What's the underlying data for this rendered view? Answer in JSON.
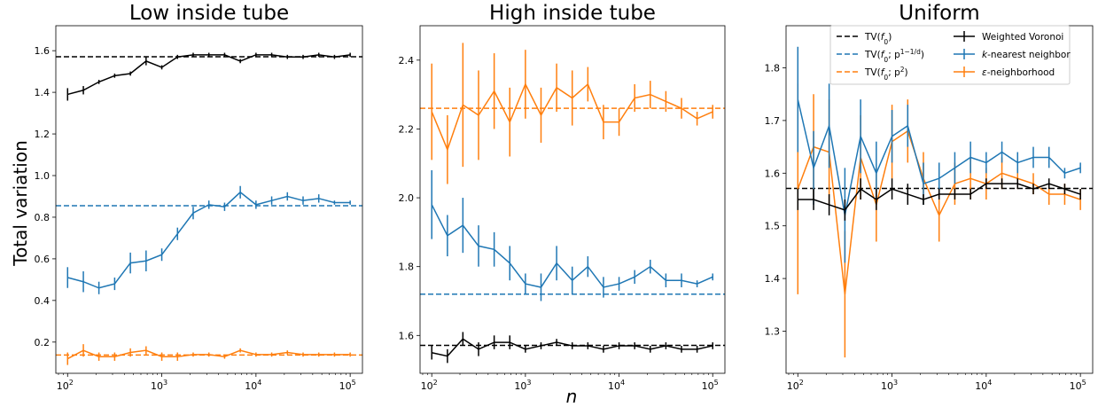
{
  "figure": {
    "ylabel": "Total variation",
    "xlabel": "n",
    "x_tick_labels": [
      "10",
      "10",
      "10",
      "10"
    ],
    "x_tick_exponents": [
      "2",
      "3",
      "4",
      "5"
    ]
  },
  "legend": {
    "entries": [
      {
        "key": "tv",
        "prefix": "TV(",
        "italic": "f",
        "sub": "0",
        "suffix": ")",
        "sup": "",
        "style": "ref-black"
      },
      {
        "key": "tv_p",
        "prefix": "TV(",
        "italic": "f",
        "sub": "0",
        "suffix": "; p",
        "sup": "1−1/d",
        "close": ")",
        "style": "ref-blue"
      },
      {
        "key": "tv_p2",
        "prefix": "TV(",
        "italic": "f",
        "sub": "0",
        "suffix": "; p",
        "sup": "2",
        "close": ")",
        "style": "ref-orange"
      },
      {
        "key": "wv",
        "label": "Weighted Voronoi",
        "style": "series-black"
      },
      {
        "key": "knn",
        "italic_prefix": "k",
        "label": "-nearest neighbor",
        "style": "series-blue"
      },
      {
        "key": "eps",
        "italic_prefix": "ε",
        "label": "-neighborhood",
        "style": "series-orange"
      }
    ]
  },
  "colors": {
    "black": "#000000",
    "blue": "#1f77b4",
    "orange": "#ff7f0e"
  },
  "chart_data": [
    {
      "type": "line",
      "title": "Low inside tube",
      "xscale": "log",
      "xlim": [
        75,
        135000
      ],
      "ylim": [
        0.05,
        1.72
      ],
      "yticks": [
        0.2,
        0.4,
        0.6,
        0.8,
        1.0,
        1.2,
        1.4,
        1.6
      ],
      "ytick_labels": [
        "0.2",
        "0.4",
        "0.6",
        "0.8",
        "1.0",
        "1.2",
        "1.4",
        "1.6"
      ],
      "x": [
        100,
        147,
        215,
        316,
        464,
        681,
        1000,
        1468,
        2154,
        3162,
        4642,
        6813,
        10000,
        14678,
        21544,
        31623,
        46416,
        68129,
        100000
      ],
      "reference_lines": [
        {
          "name": "TV(f0)",
          "color": "black",
          "y": 1.571
        },
        {
          "name": "TV(f0; p^(1-1/d))",
          "color": "blue",
          "y": 0.855
        },
        {
          "name": "TV(f0; p^2)",
          "color": "orange",
          "y": 0.138
        }
      ],
      "series": [
        {
          "name": "Weighted Voronoi",
          "color": "black",
          "values": [
            1.39,
            1.41,
            1.45,
            1.48,
            1.49,
            1.55,
            1.52,
            1.57,
            1.58,
            1.58,
            1.58,
            1.55,
            1.58,
            1.58,
            1.57,
            1.57,
            1.58,
            1.57,
            1.58
          ],
          "errors": [
            0.03,
            0.02,
            0.01,
            0.01,
            0.01,
            0.02,
            0.01,
            0.01,
            0.01,
            0.01,
            0.01,
            0.01,
            0.01,
            0.01,
            0.01,
            0.01,
            0.01,
            0.01,
            0.01
          ]
        },
        {
          "name": "k-nearest neighbor",
          "color": "blue",
          "values": [
            0.51,
            0.49,
            0.46,
            0.48,
            0.58,
            0.59,
            0.62,
            0.72,
            0.82,
            0.86,
            0.85,
            0.92,
            0.86,
            0.88,
            0.9,
            0.88,
            0.89,
            0.87,
            0.87
          ],
          "errors": [
            0.05,
            0.05,
            0.03,
            0.03,
            0.05,
            0.05,
            0.03,
            0.03,
            0.03,
            0.02,
            0.02,
            0.03,
            0.02,
            0.02,
            0.02,
            0.02,
            0.02,
            0.01,
            0.01
          ]
        },
        {
          "name": "ε-neighborhood",
          "color": "orange",
          "values": [
            0.12,
            0.16,
            0.13,
            0.13,
            0.15,
            0.16,
            0.13,
            0.13,
            0.14,
            0.14,
            0.13,
            0.16,
            0.14,
            0.14,
            0.15,
            0.14,
            0.14,
            0.14,
            0.14
          ],
          "errors": [
            0.03,
            0.03,
            0.02,
            0.02,
            0.02,
            0.02,
            0.02,
            0.02,
            0.01,
            0.01,
            0.01,
            0.01,
            0.01,
            0.01,
            0.01,
            0.01,
            0.01,
            0.01,
            0.01
          ]
        }
      ]
    },
    {
      "type": "line",
      "title": "High inside tube",
      "xscale": "log",
      "xlim": [
        75,
        135000
      ],
      "ylim": [
        1.49,
        2.5
      ],
      "yticks": [
        1.6,
        1.8,
        2.0,
        2.2,
        2.4
      ],
      "ytick_labels": [
        "1.6",
        "1.8",
        "2.0",
        "2.2",
        "2.4"
      ],
      "x": [
        100,
        147,
        215,
        316,
        464,
        681,
        1000,
        1468,
        2154,
        3162,
        4642,
        6813,
        10000,
        14678,
        21544,
        31623,
        46416,
        68129,
        100000
      ],
      "reference_lines": [
        {
          "name": "TV(f0)",
          "color": "black",
          "y": 1.571
        },
        {
          "name": "TV(f0; p^(1-1/d))",
          "color": "blue",
          "y": 1.72
        },
        {
          "name": "TV(f0; p^2)",
          "color": "orange",
          "y": 2.26
        }
      ],
      "series": [
        {
          "name": "Weighted Voronoi",
          "color": "black",
          "values": [
            1.55,
            1.54,
            1.59,
            1.56,
            1.58,
            1.58,
            1.56,
            1.57,
            1.58,
            1.57,
            1.57,
            1.56,
            1.57,
            1.57,
            1.56,
            1.57,
            1.56,
            1.56,
            1.57
          ],
          "errors": [
            0.02,
            0.02,
            0.02,
            0.02,
            0.02,
            0.02,
            0.01,
            0.01,
            0.01,
            0.01,
            0.01,
            0.01,
            0.01,
            0.01,
            0.01,
            0.01,
            0.01,
            0.01,
            0.01
          ]
        },
        {
          "name": "k-nearest neighbor",
          "color": "blue",
          "values": [
            1.98,
            1.89,
            1.92,
            1.86,
            1.85,
            1.81,
            1.75,
            1.74,
            1.81,
            1.76,
            1.8,
            1.74,
            1.75,
            1.77,
            1.8,
            1.76,
            1.76,
            1.75,
            1.77
          ],
          "errors": [
            0.1,
            0.06,
            0.08,
            0.06,
            0.05,
            0.05,
            0.03,
            0.04,
            0.05,
            0.04,
            0.03,
            0.03,
            0.02,
            0.02,
            0.02,
            0.02,
            0.02,
            0.01,
            0.01
          ]
        },
        {
          "name": "ε-neighborhood",
          "color": "orange",
          "values": [
            2.25,
            2.14,
            2.27,
            2.24,
            2.31,
            2.22,
            2.33,
            2.24,
            2.32,
            2.29,
            2.33,
            2.22,
            2.22,
            2.29,
            2.3,
            2.28,
            2.26,
            2.23,
            2.25
          ],
          "errors": [
            0.14,
            0.1,
            0.18,
            0.13,
            0.11,
            0.1,
            0.1,
            0.08,
            0.07,
            0.08,
            0.05,
            0.05,
            0.04,
            0.04,
            0.04,
            0.03,
            0.03,
            0.02,
            0.02
          ]
        }
      ]
    },
    {
      "type": "line",
      "title": "Uniform",
      "xscale": "log",
      "xlim": [
        75,
        135000
      ],
      "ylim": [
        1.22,
        1.88
      ],
      "yticks": [
        1.3,
        1.4,
        1.5,
        1.6,
        1.7,
        1.8
      ],
      "ytick_labels": [
        "1.3",
        "1.4",
        "1.5",
        "1.6",
        "1.7",
        "1.8"
      ],
      "x": [
        100,
        147,
        215,
        316,
        464,
        681,
        1000,
        1468,
        2154,
        3162,
        4642,
        6813,
        10000,
        14678,
        21544,
        31623,
        46416,
        68129,
        100000
      ],
      "reference_lines": [
        {
          "name": "TV(f0)",
          "color": "black",
          "y": 1.571
        }
      ],
      "series": [
        {
          "name": "Weighted Voronoi",
          "color": "black",
          "values": [
            1.55,
            1.55,
            1.54,
            1.53,
            1.57,
            1.55,
            1.57,
            1.56,
            1.55,
            1.56,
            1.56,
            1.56,
            1.58,
            1.58,
            1.58,
            1.57,
            1.58,
            1.57,
            1.56
          ],
          "errors": [
            0.02,
            0.02,
            0.02,
            0.02,
            0.02,
            0.02,
            0.02,
            0.02,
            0.01,
            0.01,
            0.01,
            0.01,
            0.01,
            0.01,
            0.01,
            0.01,
            0.01,
            0.01,
            0.01
          ]
        },
        {
          "name": "k-nearest neighbor",
          "color": "blue",
          "values": [
            1.74,
            1.61,
            1.69,
            1.52,
            1.67,
            1.6,
            1.67,
            1.69,
            1.58,
            1.59,
            1.61,
            1.63,
            1.62,
            1.64,
            1.62,
            1.63,
            1.63,
            1.6,
            1.61
          ],
          "errors": [
            0.1,
            0.07,
            0.08,
            0.09,
            0.07,
            0.06,
            0.05,
            0.04,
            0.04,
            0.03,
            0.03,
            0.03,
            0.02,
            0.02,
            0.02,
            0.02,
            0.02,
            0.01,
            0.01
          ]
        },
        {
          "name": "ε-neighborhood",
          "color": "orange",
          "values": [
            1.57,
            1.65,
            1.64,
            1.37,
            1.63,
            1.54,
            1.66,
            1.68,
            1.59,
            1.52,
            1.58,
            1.59,
            1.58,
            1.6,
            1.59,
            1.58,
            1.56,
            1.56,
            1.55
          ],
          "errors": [
            0.2,
            0.1,
            0.1,
            0.12,
            0.08,
            0.07,
            0.07,
            0.06,
            0.05,
            0.05,
            0.04,
            0.04,
            0.03,
            0.03,
            0.02,
            0.02,
            0.02,
            0.02,
            0.02
          ]
        }
      ]
    }
  ]
}
